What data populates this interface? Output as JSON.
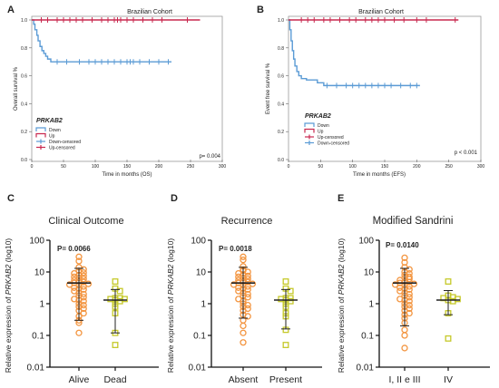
{
  "colors": {
    "down": "#5b9bd5",
    "up": "#c8294f",
    "high_group": "#f39540",
    "low_group": "#c6c92a"
  },
  "ylabel_parts": {
    "before": "Relative expression of ",
    "gene": "PRKAB2",
    "after": " (log10)"
  },
  "panels": [
    {
      "letter": "A",
      "title": "Brazilian Cohort",
      "ylabel": "Overall survival %",
      "xlabel": "Time in months (OS)",
      "legend_title": "PRKAB2",
      "pvalue": "p= 0.004"
    },
    {
      "letter": "B",
      "title": "Brazilian Cohort",
      "ylabel": "Event free survival %",
      "xlabel": "Time in months (EFS)",
      "legend_title": "PRKAB2",
      "pvalue": "p < 0.001"
    },
    {
      "letter": "C",
      "title": "Clinical Outcome",
      "pvalue": "P= 0.0066"
    },
    {
      "letter": "D",
      "title": "Recurrence",
      "pvalue": "P= 0.0018"
    },
    {
      "letter": "E",
      "title": "Modified Sandrini",
      "pvalue": "P= 0.0140"
    }
  ],
  "chart_data": [
    {
      "panel": "A",
      "type": "line",
      "xlim": [
        0,
        300
      ],
      "ylim": [
        0,
        1.0
      ],
      "x_ticks": [
        0,
        50,
        100,
        150,
        200,
        250,
        300
      ],
      "y_ticks": [
        0.0,
        0.2,
        0.4,
        0.6,
        0.8,
        1.0
      ],
      "legend_entries": [
        "Down",
        "Up",
        "Down-censored",
        "Up-censored"
      ],
      "series": [
        {
          "name": "Down",
          "color": "#5b9bd5",
          "steps": [
            [
              0,
              1.0
            ],
            [
              3,
              0.97
            ],
            [
              5,
              0.93
            ],
            [
              8,
              0.89
            ],
            [
              10,
              0.85
            ],
            [
              13,
              0.81
            ],
            [
              16,
              0.78
            ],
            [
              19,
              0.76
            ],
            [
              22,
              0.74
            ],
            [
              25,
              0.72
            ],
            [
              30,
              0.7
            ],
            [
              220,
              0.7
            ]
          ],
          "censored": [
            40,
            55,
            75,
            90,
            100,
            110,
            120,
            130,
            140,
            150,
            155,
            160,
            170,
            185,
            200,
            215
          ]
        },
        {
          "name": "Up",
          "color": "#c8294f",
          "steps": [
            [
              0,
              1.0
            ],
            [
              265,
              1.0
            ]
          ],
          "censored": [
            15,
            25,
            40,
            50,
            60,
            70,
            80,
            95,
            110,
            120,
            130,
            135,
            140,
            150,
            160,
            175,
            190,
            205,
            245
          ]
        }
      ]
    },
    {
      "panel": "B",
      "type": "line",
      "xlim": [
        0,
        300
      ],
      "ylim": [
        0,
        1.0
      ],
      "x_ticks": [
        0,
        50,
        100,
        150,
        200,
        250,
        300
      ],
      "y_ticks": [
        0.0,
        0.2,
        0.4,
        0.6,
        0.8,
        1.0
      ],
      "legend_entries": [
        "Down",
        "Up",
        "Up-censored",
        "Down-censored"
      ],
      "series": [
        {
          "name": "Down",
          "color": "#5b9bd5",
          "steps": [
            [
              0,
              1.0
            ],
            [
              2,
              0.93
            ],
            [
              4,
              0.85
            ],
            [
              6,
              0.78
            ],
            [
              8,
              0.72
            ],
            [
              10,
              0.67
            ],
            [
              13,
              0.63
            ],
            [
              16,
              0.6
            ],
            [
              20,
              0.58
            ],
            [
              28,
              0.57
            ],
            [
              45,
              0.55
            ],
            [
              55,
              0.53
            ],
            [
              205,
              0.53
            ]
          ],
          "censored": [
            60,
            75,
            90,
            100,
            110,
            120,
            130,
            140,
            150,
            160,
            175,
            190,
            200
          ]
        },
        {
          "name": "Up",
          "color": "#c8294f",
          "steps": [
            [
              0,
              1.0
            ],
            [
              265,
              1.0
            ]
          ],
          "censored": [
            20,
            30,
            40,
            55,
            65,
            80,
            95,
            105,
            120,
            130,
            140,
            150,
            165,
            180,
            200,
            215,
            260
          ]
        }
      ]
    },
    {
      "panel": "C",
      "type": "scatter",
      "y_scale": "log",
      "ylim": [
        0.01,
        100
      ],
      "y_tick_labels": [
        "100",
        "10",
        "1",
        "0.1",
        "0.01"
      ],
      "categories": [
        "Alive",
        "Dead"
      ],
      "series": [
        {
          "name": "Alive",
          "marker": "circle",
          "color": "#f39540",
          "median": 4.5,
          "error": [
            0.3,
            13.0
          ],
          "values": [
            30,
            22,
            14,
            12,
            11,
            9.5,
            9,
            8,
            7.5,
            7,
            6.5,
            6,
            5.5,
            5,
            4.8,
            4.5,
            4.2,
            4,
            3.8,
            3.5,
            3.2,
            3,
            2.8,
            2.5,
            2.2,
            2,
            1.8,
            1.6,
            1.4,
            1.3,
            1.2,
            1,
            0.9,
            0.8,
            0.7,
            0.6,
            0.5,
            0.4,
            0.3,
            0.25,
            0.12
          ]
        },
        {
          "name": "Dead",
          "marker": "square",
          "color": "#c6c92a",
          "median": 1.3,
          "error": [
            0.12,
            2.8
          ],
          "values": [
            5,
            3,
            2.5,
            1.5,
            1.5,
            1.4,
            1.4,
            1.3,
            1.2,
            1,
            0.8,
            0.5,
            0.12,
            0.05
          ]
        }
      ]
    },
    {
      "panel": "D",
      "type": "scatter",
      "y_scale": "log",
      "ylim": [
        0.01,
        100
      ],
      "y_tick_labels": [
        "100",
        "10",
        "1",
        "0.1",
        "0.01"
      ],
      "categories": [
        "Absent",
        "Present"
      ],
      "series": [
        {
          "name": "Absent",
          "marker": "circle",
          "color": "#f39540",
          "median": 4.5,
          "error": [
            0.35,
            14.0
          ],
          "values": [
            30,
            24,
            15,
            12,
            11,
            10,
            9,
            8,
            7.5,
            7,
            6.5,
            6,
            5.5,
            5,
            4.8,
            4.5,
            4.2,
            4,
            3.8,
            3.5,
            3.2,
            3,
            2.8,
            2.5,
            2.2,
            2,
            1.8,
            1.6,
            1.4,
            1.2,
            1,
            0.9,
            0.8,
            0.7,
            0.6,
            0.45,
            0.4,
            0.3,
            0.2,
            0.12,
            0.06
          ]
        },
        {
          "name": "Present",
          "marker": "square",
          "color": "#c6c92a",
          "median": 1.3,
          "error": [
            0.16,
            2.8
          ],
          "values": [
            5,
            3,
            2.5,
            1.5,
            1.5,
            1.4,
            1.3,
            1.2,
            1,
            0.8,
            0.5,
            0.4,
            0.15,
            0.05
          ]
        }
      ]
    },
    {
      "panel": "E",
      "type": "scatter",
      "y_scale": "log",
      "ylim": [
        0.01,
        100
      ],
      "y_tick_labels": [
        "100",
        "10",
        "1",
        "0.1",
        "0.01"
      ],
      "categories": [
        "I, II e III",
        "IV"
      ],
      "series": [
        {
          "name": "I, II e III",
          "marker": "circle",
          "color": "#f39540",
          "median": 4.5,
          "error": [
            0.2,
            13.0
          ],
          "values": [
            28,
            20,
            14,
            12,
            10,
            9,
            8,
            7,
            6.5,
            6,
            5.5,
            5,
            4.8,
            4.5,
            4.2,
            4,
            3.8,
            3.5,
            3.2,
            3,
            2.8,
            2.5,
            2.2,
            2,
            1.8,
            1.6,
            1.4,
            1.3,
            1.2,
            1,
            0.9,
            0.8,
            0.7,
            0.6,
            0.5,
            0.45,
            0.35,
            0.25,
            0.15,
            0.1,
            0.04
          ]
        },
        {
          "name": "IV",
          "marker": "square",
          "color": "#c6c92a",
          "median": 1.3,
          "error": [
            0.45,
            2.6
          ],
          "values": [
            5,
            1.8,
            1.6,
            1.5,
            1.4,
            1.3,
            1.2,
            0.5,
            0.08
          ]
        }
      ]
    }
  ]
}
